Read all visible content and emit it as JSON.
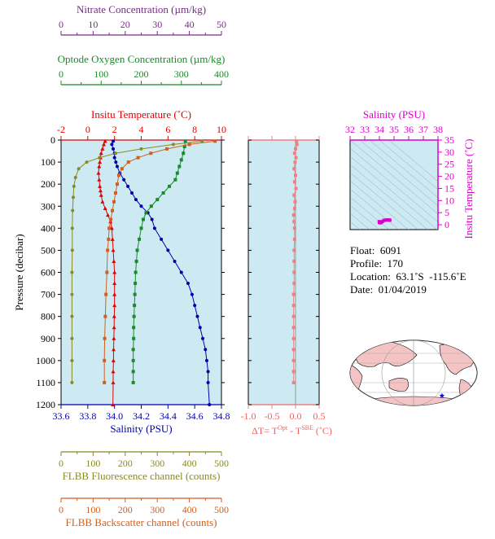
{
  "chart_data": [
    {
      "type": "line",
      "id": "main-profile",
      "ylabel": "Pressure (decibar)",
      "ylim": [
        1200,
        0
      ],
      "yticks": [
        0,
        100,
        200,
        300,
        400,
        500,
        600,
        700,
        800,
        900,
        1000,
        1100,
        1200
      ],
      "top_axes": [
        {
          "label": "Nitrate Concentration (µm/kg)",
          "ticks": [
            0,
            10,
            20,
            30,
            40,
            50
          ],
          "color": "#7a2a8a"
        },
        {
          "label": "Optode Oxygen Concentration (µm/kg)",
          "ticks": [
            0,
            100,
            200,
            300,
            400
          ],
          "color": "#1a8a2a"
        },
        {
          "label": "Insitu Temperature (˚C)",
          "ticks": [
            -2,
            0,
            2,
            4,
            6,
            8,
            10
          ],
          "color": "#e00000"
        }
      ],
      "bottom_axes": [
        {
          "label": "Salinity (PSU)",
          "ticks": [
            "33.6",
            "33.8",
            "34.0",
            "34.2",
            "34.4",
            "34.6",
            "34.8"
          ],
          "color": "#0000aa"
        },
        {
          "label": "FLBB Fluorescence channel (counts)",
          "ticks": [
            0,
            100,
            200,
            300,
            400,
            500
          ],
          "color": "#8a8a20"
        },
        {
          "label": "FLBB Backscatter channel (counts)",
          "ticks": [
            0,
            100,
            200,
            300,
            400,
            500
          ],
          "color": "#d06020"
        }
      ],
      "series": [
        {
          "name": "Insitu Temperature (˚C)",
          "color": "#e00000",
          "xrange": [
            -2,
            10
          ],
          "points": [
            [
              1.3,
              5
            ],
            [
              1.2,
              20
            ],
            [
              1.1,
              40
            ],
            [
              1.0,
              60
            ],
            [
              0.95,
              80
            ],
            [
              0.9,
              100
            ],
            [
              0.85,
              120
            ],
            [
              0.8,
              150
            ],
            [
              0.85,
              180
            ],
            [
              0.9,
              210
            ],
            [
              0.95,
              230
            ],
            [
              1.0,
              250
            ],
            [
              1.1,
              280
            ],
            [
              1.3,
              310
            ],
            [
              1.5,
              340
            ],
            [
              1.7,
              370
            ],
            [
              1.8,
              400
            ],
            [
              1.85,
              450
            ],
            [
              1.9,
              500
            ],
            [
              1.95,
              550
            ],
            [
              2.0,
              600
            ],
            [
              2.0,
              650
            ],
            [
              2.0,
              700
            ],
            [
              2.0,
              750
            ],
            [
              1.98,
              800
            ],
            [
              1.97,
              850
            ],
            [
              1.95,
              900
            ],
            [
              1.93,
              950
            ],
            [
              1.92,
              1000
            ],
            [
              1.9,
              1050
            ],
            [
              1.9,
              1100
            ],
            [
              1.88,
              1200
            ]
          ]
        },
        {
          "name": "Salinity (PSU)",
          "color": "#0000aa",
          "xrange": [
            33.6,
            34.8
          ],
          "points": [
            [
              33.99,
              5
            ],
            [
              33.98,
              20
            ],
            [
              33.99,
              40
            ],
            [
              34.0,
              60
            ],
            [
              34.0,
              80
            ],
            [
              34.01,
              100
            ],
            [
              34.02,
              120
            ],
            [
              34.04,
              150
            ],
            [
              34.07,
              180
            ],
            [
              34.1,
              210
            ],
            [
              34.13,
              240
            ],
            [
              34.16,
              270
            ],
            [
              34.2,
              300
            ],
            [
              34.25,
              330
            ],
            [
              34.28,
              360
            ],
            [
              34.3,
              400
            ],
            [
              34.35,
              450
            ],
            [
              34.4,
              500
            ],
            [
              34.45,
              550
            ],
            [
              34.5,
              600
            ],
            [
              34.55,
              650
            ],
            [
              34.58,
              700
            ],
            [
              34.6,
              750
            ],
            [
              34.62,
              800
            ],
            [
              34.64,
              850
            ],
            [
              34.66,
              900
            ],
            [
              34.68,
              950
            ],
            [
              34.69,
              1000
            ],
            [
              34.7,
              1050
            ],
            [
              34.7,
              1100
            ],
            [
              34.71,
              1200
            ]
          ]
        },
        {
          "name": "Optode Oxygen Concentration (µm/kg)",
          "color": "#1a8a2a",
          "xrange": [
            0,
            400
          ],
          "points": [
            [
              310,
              5
            ],
            [
              308,
              30
            ],
            [
              305,
              60
            ],
            [
              300,
              90
            ],
            [
              295,
              120
            ],
            [
              290,
              150
            ],
            [
              285,
              180
            ],
            [
              270,
              210
            ],
            [
              255,
              240
            ],
            [
              240,
              270
            ],
            [
              225,
              300
            ],
            [
              212,
              330
            ],
            [
              205,
              360
            ],
            [
              200,
              400
            ],
            [
              195,
              450
            ],
            [
              190,
              500
            ],
            [
              188,
              550
            ],
            [
              186,
              600
            ],
            [
              185,
              650
            ],
            [
              184,
              700
            ],
            [
              183,
              750
            ],
            [
              182,
              800
            ],
            [
              181,
              850
            ],
            [
              181,
              900
            ],
            [
              180,
              950
            ],
            [
              180,
              1000
            ],
            [
              180,
              1050
            ],
            [
              180,
              1100
            ]
          ]
        },
        {
          "name": "FLBB Fluorescence channel (counts)",
          "color": "#8a8a20",
          "xrange": [
            0,
            500
          ],
          "points": [
            [
              440,
              5
            ],
            [
              350,
              20
            ],
            [
              250,
              40
            ],
            [
              170,
              60
            ],
            [
              120,
              80
            ],
            [
              80,
              100
            ],
            [
              55,
              130
            ],
            [
              45,
              170
            ],
            [
              40,
              210
            ],
            [
              38,
              260
            ],
            [
              36,
              320
            ],
            [
              35,
              400
            ],
            [
              35,
              500
            ],
            [
              34,
              600
            ],
            [
              34,
              700
            ],
            [
              34,
              800
            ],
            [
              34,
              900
            ],
            [
              34,
              1000
            ],
            [
              34,
              1100
            ]
          ]
        },
        {
          "name": "FLBB Backscatter channel (counts)",
          "color": "#d06020",
          "xrange": [
            0,
            500
          ],
          "points": [
            [
              480,
              5
            ],
            [
              400,
              20
            ],
            [
              330,
              40
            ],
            [
              280,
              60
            ],
            [
              240,
              80
            ],
            [
              210,
              100
            ],
            [
              190,
              130
            ],
            [
              180,
              160
            ],
            [
              175,
              200
            ],
            [
              170,
              240
            ],
            [
              165,
              280
            ],
            [
              160,
              320
            ],
            [
              155,
              360
            ],
            [
              150,
              400
            ],
            [
              148,
              450
            ],
            [
              145,
              500
            ],
            [
              143,
              600
            ],
            [
              140,
              700
            ],
            [
              138,
              800
            ],
            [
              136,
              900
            ],
            [
              135,
              1000
            ],
            [
              135,
              1100
            ]
          ]
        }
      ]
    },
    {
      "type": "line",
      "id": "delta-t",
      "xlabel": "ΔT= T",
      "xlabel_sup1": "Opt",
      "xlabel_mid": " - T",
      "xlabel_sup2": "SBE",
      "xlabel_end": " (˚C)",
      "xticks": [
        "-1.0",
        "-0.5",
        "0.0",
        "0.5"
      ],
      "xlim": [
        -1.0,
        0.5
      ],
      "ylim": [
        1200,
        0
      ],
      "series": [
        {
          "name": "ΔT",
          "color": "#f08080",
          "points": [
            [
              0.02,
              5
            ],
            [
              0.03,
              20
            ],
            [
              0.0,
              40
            ],
            [
              -0.02,
              60
            ],
            [
              0.01,
              80
            ],
            [
              -0.01,
              100
            ],
            [
              -0.03,
              130
            ],
            [
              0.0,
              160
            ],
            [
              -0.02,
              190
            ],
            [
              0.01,
              220
            ],
            [
              -0.03,
              250
            ],
            [
              -0.01,
              280
            ],
            [
              -0.02,
              310
            ],
            [
              -0.04,
              340
            ],
            [
              -0.03,
              370
            ],
            [
              -0.02,
              400
            ],
            [
              -0.02,
              450
            ],
            [
              -0.03,
              500
            ],
            [
              -0.03,
              550
            ],
            [
              -0.03,
              600
            ],
            [
              -0.03,
              650
            ],
            [
              -0.04,
              700
            ],
            [
              -0.04,
              750
            ],
            [
              -0.04,
              800
            ],
            [
              -0.04,
              850
            ],
            [
              -0.04,
              900
            ],
            [
              -0.04,
              950
            ],
            [
              -0.04,
              1000
            ],
            [
              -0.04,
              1050
            ],
            [
              -0.04,
              1100
            ]
          ]
        }
      ]
    },
    {
      "type": "scatter",
      "id": "ts-diagram",
      "xlabel": "Salinity (PSU)",
      "ylabel": "Insitu Temperature (˚C)",
      "xticks": [
        32,
        33,
        34,
        35,
        36,
        37,
        38
      ],
      "yticks": [
        0,
        5,
        10,
        15,
        20,
        25,
        30,
        35
      ],
      "xlim": [
        32,
        38
      ],
      "ylim": [
        -2,
        35
      ],
      "color": "#dd00cc",
      "series": [
        {
          "name": "T-S",
          "points": [
            [
              33.99,
              1.3
            ],
            [
              34.0,
              1.0
            ],
            [
              34.04,
              0.8
            ],
            [
              34.1,
              0.9
            ],
            [
              34.2,
              1.3
            ],
            [
              34.3,
              1.8
            ],
            [
              34.4,
              1.9
            ],
            [
              34.5,
              2.0
            ],
            [
              34.6,
              2.0
            ],
            [
              34.65,
              1.95
            ],
            [
              34.7,
              1.9
            ],
            [
              34.71,
              1.88
            ]
          ]
        }
      ]
    }
  ],
  "info": {
    "float_label": "Float:",
    "float_value": "6091",
    "profile_label": "Profile:",
    "profile_value": "170",
    "location_label": "Location:",
    "location_value": "63.1˚S  -115.6˚E",
    "date_label": "Date:",
    "date_value": "01/04/2019"
  },
  "map": {
    "marker_lat": -63.1,
    "marker_lon": -115.6,
    "marker_color": "#0000ff"
  }
}
